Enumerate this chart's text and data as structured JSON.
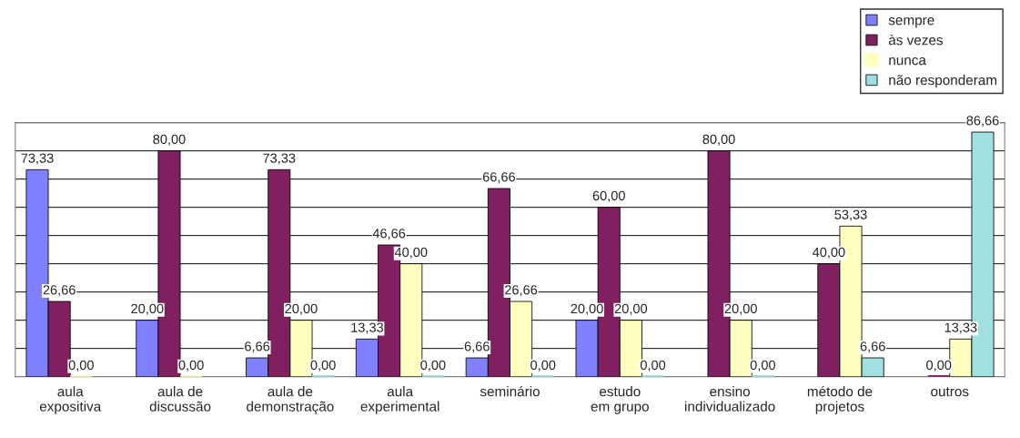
{
  "chart_data": {
    "type": "bar",
    "categories": [
      "aula\nexpositiva",
      "aula de\ndiscussão",
      "aula de\ndemonstração",
      "aula\nexperimental",
      "seminário",
      "estudo\nem grupo",
      "ensino\nindividualizado",
      "método de\nprojetos",
      "outros"
    ],
    "series": [
      {
        "name": "sempre",
        "color": "#8080ff",
        "values": [
          73.33,
          20.0,
          6.66,
          13.33,
          6.66,
          20.0,
          null,
          null,
          null
        ],
        "value_labels": [
          "73,33",
          "20,00",
          "6,66",
          "13,33",
          "6,66",
          "20,00",
          null,
          null,
          null
        ]
      },
      {
        "name": "às vezes",
        "color": "#802060",
        "values": [
          26.66,
          80.0,
          73.33,
          46.66,
          66.66,
          60.0,
          80.0,
          40.0,
          0.0
        ],
        "value_labels": [
          "26,66",
          "80,00",
          "73,33",
          "46,66",
          "66,66",
          "60,00",
          "80,00",
          "40,00",
          "0,00"
        ]
      },
      {
        "name": "nunca",
        "color": "#ffffc0",
        "values": [
          0.0,
          0.0,
          20.0,
          40.0,
          26.66,
          20.0,
          20.0,
          53.33,
          13.33
        ],
        "value_labels": [
          "0,00",
          "0,00",
          "20,00",
          "40,00",
          "26,66",
          "20,00",
          "20,00",
          "53,33",
          "13,33"
        ]
      },
      {
        "name": "não responderam",
        "color": "#a0e0e0",
        "values": [
          null,
          null,
          0.0,
          0.0,
          0.0,
          0.0,
          0.0,
          6.66,
          86.66
        ],
        "value_labels": [
          null,
          null,
          "0,00",
          "0,00",
          "0,00",
          "0,00",
          "0,00",
          "6,66",
          "86,66"
        ]
      }
    ],
    "ylim": [
      0,
      90
    ],
    "yticks": [
      {
        "value": 0,
        "label": null
      },
      {
        "value": 10,
        "label": null
      },
      {
        "value": 20,
        "label": null
      },
      {
        "value": 30,
        "label": null
      },
      {
        "value": 40,
        "label": null
      },
      {
        "value": 50,
        "label": null
      },
      {
        "value": 60,
        "label": null
      },
      {
        "value": 70,
        "label": null
      },
      {
        "value": 80,
        "label": null
      },
      {
        "value": 90,
        "label": null
      }
    ],
    "tick_labels": "x",
    "grid": "y",
    "legend": "top right"
  }
}
